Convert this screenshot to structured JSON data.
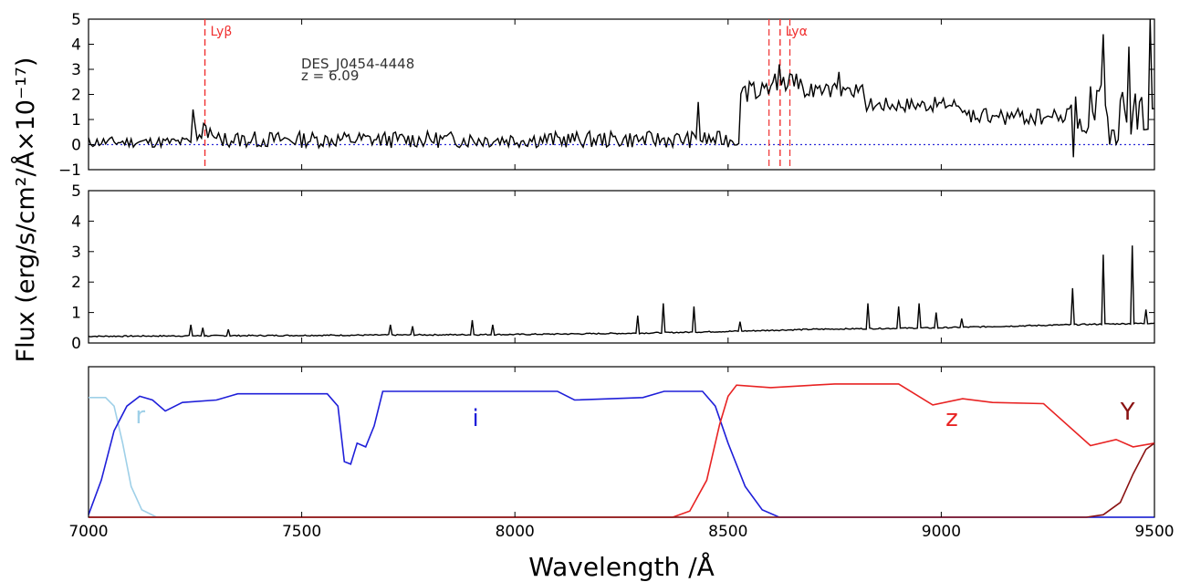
{
  "chart_data": [
    {
      "type": "line",
      "panel": "observed-spectrum",
      "object_label": "DES_J0454-4448",
      "redshift_label": "z = 6.09",
      "xlim": [
        7000,
        9500
      ],
      "ylim": [
        -1,
        5
      ],
      "yticks": [
        -1,
        0,
        1,
        2,
        3,
        4,
        5
      ],
      "ytick_labels": [
        "−1",
        "0",
        "1",
        "2",
        "3",
        "4",
        "5"
      ],
      "zero_line": {
        "y": 0,
        "style": "dotted",
        "color": "#2b2bd9"
      },
      "lines": [
        {
          "label": "Lyβ",
          "x": 7273,
          "color": "#f03030"
        },
        {
          "label": "Lyα",
          "x": 8622,
          "color": "#f03030"
        }
      ],
      "extra_dashed_x": [
        8596,
        8645
      ],
      "series": [
        {
          "color": "#000000",
          "segments": [
            {
              "x0": 7000,
              "x1": 7250,
              "base": 0.1,
              "noise": 0.22,
              "seed": 11
            },
            {
              "x0": 7250,
              "x1": 7300,
              "base": 0.55,
              "noise": 0.45,
              "seed": 12
            },
            {
              "x0": 7300,
              "x1": 8530,
              "base": 0.2,
              "noise": 0.33,
              "seed": 13
            },
            {
              "x0": 8530,
              "x1": 8600,
              "base": 2.1,
              "noise": 0.45,
              "seed": 14
            },
            {
              "x0": 8600,
              "x1": 8680,
              "base": 2.5,
              "noise": 0.35,
              "seed": 15
            },
            {
              "x0": 8680,
              "x1": 8820,
              "base": 2.15,
              "noise": 0.3,
              "seed": 16
            },
            {
              "x0": 8820,
              "x1": 9050,
              "base": 1.6,
              "noise": 0.3,
              "seed": 17
            },
            {
              "x0": 9050,
              "x1": 9300,
              "base": 1.1,
              "noise": 0.35,
              "seed": 18
            },
            {
              "x0": 9300,
              "x1": 9500,
              "base": 1.2,
              "noise": 1.2,
              "seed": 19
            }
          ],
          "spikes": [
            [
              7245,
              1.4
            ],
            [
              8430,
              1.7
            ],
            [
              8620,
              3.2
            ],
            [
              8760,
              2.9
            ],
            [
              9380,
              4.4
            ],
            [
              9440,
              3.9
            ],
            [
              9490,
              5.0
            ],
            [
              9310,
              -0.5
            ]
          ]
        }
      ]
    },
    {
      "type": "line",
      "panel": "noise-spectrum",
      "xlim": [
        7000,
        9500
      ],
      "ylim": [
        0,
        5
      ],
      "yticks": [
        0,
        1,
        2,
        3,
        4,
        5
      ],
      "ytick_labels": [
        "0",
        "1",
        "2",
        "3",
        "4",
        "5"
      ],
      "series": [
        {
          "color": "#000000",
          "baseline": [
            [
              7000,
              0.22
            ],
            [
              7500,
              0.25
            ],
            [
              8000,
              0.28
            ],
            [
              8280,
              0.32
            ],
            [
              8500,
              0.38
            ],
            [
              8700,
              0.45
            ],
            [
              9000,
              0.5
            ],
            [
              9300,
              0.6
            ],
            [
              9500,
              0.65
            ]
          ],
          "spikes": [
            [
              7240,
              0.6
            ],
            [
              7270,
              0.5
            ],
            [
              7330,
              0.45
            ],
            [
              7710,
              0.6
            ],
            [
              7760,
              0.55
            ],
            [
              7900,
              0.75
            ],
            [
              7950,
              0.6
            ],
            [
              8290,
              0.9
            ],
            [
              8350,
              1.3
            ],
            [
              8420,
              1.2
            ],
            [
              8530,
              0.7
            ],
            [
              8830,
              1.3
            ],
            [
              8900,
              1.2
            ],
            [
              8950,
              1.3
            ],
            [
              8990,
              1.0
            ],
            [
              9050,
              0.8
            ],
            [
              9310,
              1.8
            ],
            [
              9380,
              2.9
            ],
            [
              9450,
              3.2
            ],
            [
              9480,
              1.1
            ]
          ]
        }
      ]
    },
    {
      "type": "line",
      "panel": "filter-transmission",
      "xlim": [
        7000,
        9500
      ],
      "xticks": [
        7000,
        7500,
        8000,
        8500,
        9000,
        9500
      ],
      "xtick_labels": [
        "7000",
        "7500",
        "8000",
        "8500",
        "9000",
        "9500"
      ],
      "xlabel": "Wavelength  /Å",
      "ylabel": "Flux (erg/s/cm²/Å×10⁻¹⁷)",
      "series": [
        {
          "name": "r",
          "color": "#9fd0e8",
          "points": [
            [
              7000,
              0.97
            ],
            [
              7040,
              0.97
            ],
            [
              7060,
              0.9
            ],
            [
              7080,
              0.6
            ],
            [
              7100,
              0.25
            ],
            [
              7125,
              0.06
            ],
            [
              7160,
              0.0
            ],
            [
              9500,
              0.0
            ]
          ]
        },
        {
          "name": "i",
          "color": "#1f1fd9",
          "points": [
            [
              7000,
              0.02
            ],
            [
              7030,
              0.3
            ],
            [
              7060,
              0.7
            ],
            [
              7090,
              0.9
            ],
            [
              7120,
              0.98
            ],
            [
              7150,
              0.95
            ],
            [
              7180,
              0.86
            ],
            [
              7220,
              0.93
            ],
            [
              7300,
              0.95
            ],
            [
              7350,
              1.0
            ],
            [
              7560,
              1.0
            ],
            [
              7585,
              0.9
            ],
            [
              7600,
              0.45
            ],
            [
              7615,
              0.43
            ],
            [
              7630,
              0.6
            ],
            [
              7650,
              0.57
            ],
            [
              7670,
              0.74
            ],
            [
              7690,
              1.02
            ],
            [
              8100,
              1.02
            ],
            [
              8140,
              0.95
            ],
            [
              8300,
              0.97
            ],
            [
              8350,
              1.02
            ],
            [
              8440,
              1.02
            ],
            [
              8470,
              0.9
            ],
            [
              8500,
              0.6
            ],
            [
              8540,
              0.25
            ],
            [
              8580,
              0.06
            ],
            [
              8620,
              0.0
            ],
            [
              9500,
              0.0
            ]
          ]
        },
        {
          "name": "z",
          "color": "#e82323",
          "points": [
            [
              7000,
              0.0
            ],
            [
              8370,
              0.0
            ],
            [
              8410,
              0.05
            ],
            [
              8450,
              0.3
            ],
            [
              8480,
              0.75
            ],
            [
              8500,
              0.98
            ],
            [
              8520,
              1.07
            ],
            [
              8600,
              1.05
            ],
            [
              8750,
              1.08
            ],
            [
              8900,
              1.08
            ],
            [
              8980,
              0.91
            ],
            [
              9050,
              0.96
            ],
            [
              9120,
              0.93
            ],
            [
              9240,
              0.92
            ],
            [
              9350,
              0.58
            ],
            [
              9410,
              0.63
            ],
            [
              9450,
              0.57
            ],
            [
              9500,
              0.6
            ]
          ]
        },
        {
          "name": "Y",
          "color": "#8a1212",
          "points": [
            [
              7000,
              0.0
            ],
            [
              9340,
              0.0
            ],
            [
              9380,
              0.02
            ],
            [
              9420,
              0.12
            ],
            [
              9450,
              0.35
            ],
            [
              9480,
              0.55
            ],
            [
              9500,
              0.6
            ]
          ]
        }
      ]
    }
  ]
}
